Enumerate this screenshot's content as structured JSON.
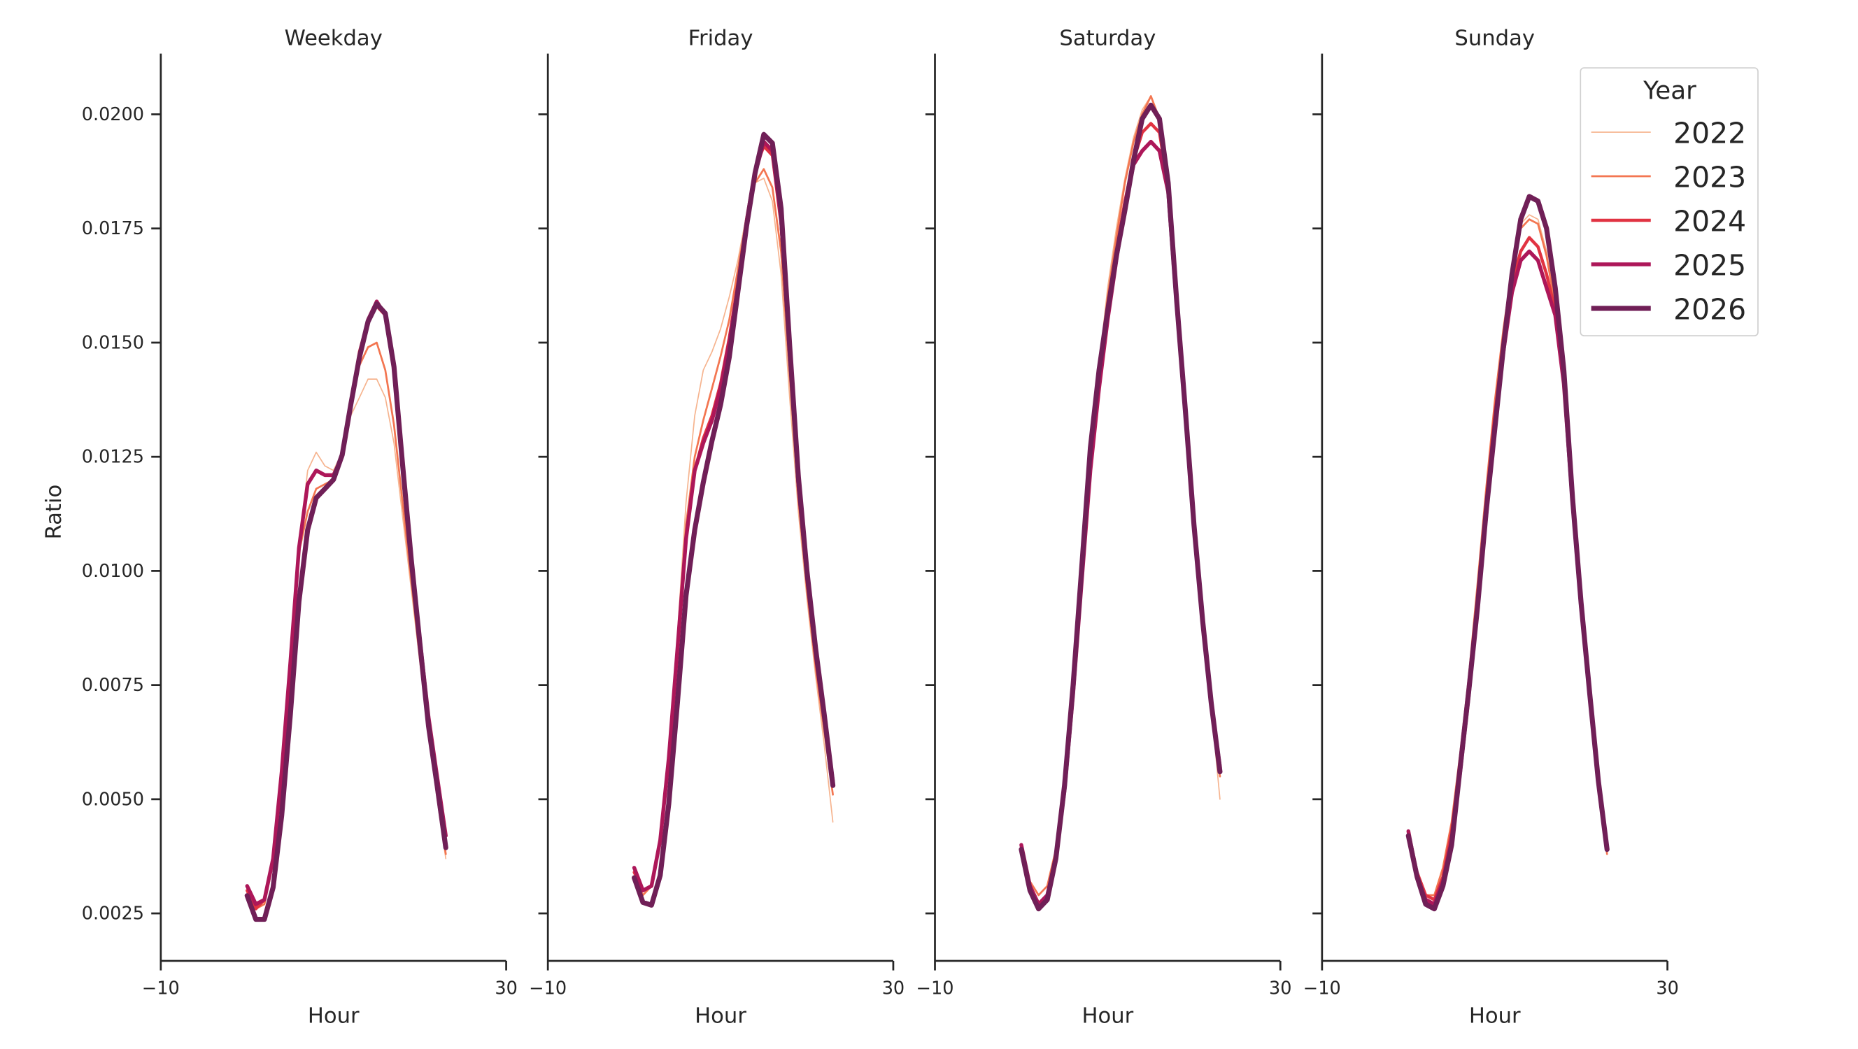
{
  "chart_data": {
    "type": "line",
    "ylabel": "Ratio",
    "xlabel": "Hour",
    "xlim": [
      -10,
      30
    ],
    "ylim": [
      0.00146,
      0.02133
    ],
    "x_ticks": [
      -10,
      30
    ],
    "x_tick_labels": [
      "−10",
      "30"
    ],
    "y_ticks": [
      0.0025,
      0.005,
      0.0075,
      0.01,
      0.0125,
      0.015,
      0.0175,
      0.02
    ],
    "y_tick_labels": [
      "0.0025",
      "0.0050",
      "0.0075",
      "0.0100",
      "0.0125",
      "0.0150",
      "0.0175",
      "0.0200"
    ],
    "grid": false,
    "legend": {
      "title": "Year",
      "placement": "top-right"
    },
    "x": [
      0,
      1,
      2,
      3,
      4,
      5,
      6,
      7,
      8,
      9,
      10,
      11,
      12,
      13,
      14,
      15,
      16,
      17,
      18,
      19,
      20,
      21,
      22,
      23
    ],
    "series_styles": [
      {
        "name": "2022",
        "color": "#f6b48f"
      },
      {
        "name": "2023",
        "color": "#f37651"
      },
      {
        "name": "2024",
        "color": "#e13342"
      },
      {
        "name": "2025",
        "color": "#ad1759"
      },
      {
        "name": "2026",
        "color": "#701f57"
      }
    ],
    "panels": [
      {
        "title": "Weekday",
        "series": [
          {
            "name": "2022",
            "values": [
              0.0029,
              0.0027,
              0.0028,
              0.0036,
              0.0055,
              0.0079,
              0.0105,
              0.0122,
              0.0126,
              0.0123,
              0.0122,
              0.0126,
              0.0134,
              0.0138,
              0.0142,
              0.0142,
              0.0138,
              0.0128,
              0.0112,
              0.0096,
              0.008,
              0.0064,
              0.005,
              0.0037
            ]
          },
          {
            "name": "2023",
            "values": [
              0.0029,
              0.0026,
              0.0027,
              0.0036,
              0.0055,
              0.0079,
              0.0104,
              0.0113,
              0.0118,
              0.0119,
              0.012,
              0.0125,
              0.0136,
              0.0145,
              0.0149,
              0.015,
              0.0144,
              0.0132,
              0.0115,
              0.0098,
              0.0081,
              0.0065,
              0.0051,
              0.0038
            ]
          },
          {
            "name": "2024",
            "values": [
              0.003,
              0.0026,
              0.0028,
              0.0037,
              0.0056,
              0.008,
              0.0105,
              0.0119,
              0.0122,
              0.0121,
              0.0121,
              0.0125,
              0.0137,
              0.0148,
              0.0155,
              0.0158,
              0.0156,
              0.0145,
              0.0124,
              0.0103,
              0.0085,
              0.0068,
              0.0055,
              0.0042
            ]
          },
          {
            "name": "2025",
            "values": [
              0.0031,
              0.0027,
              0.0028,
              0.0037,
              0.0056,
              0.008,
              0.0105,
              0.0119,
              0.0122,
              0.0121,
              0.0121,
              0.0125,
              0.0136,
              0.0147,
              0.0155,
              0.0159,
              0.0156,
              0.0145,
              0.0124,
              0.0103,
              0.0085,
              0.0068,
              0.0055,
              0.0042
            ]
          },
          {
            "name": "2026",
            "values": [
              0.00289,
              0.00237,
              0.00237,
              0.00307,
              0.00464,
              0.00686,
              0.00933,
              0.0109,
              0.0116,
              0.0118,
              0.012,
              0.01254,
              0.01364,
              0.01468,
              0.01546,
              0.01585,
              0.01564,
              0.01447,
              0.01233,
              0.01025,
              0.00842,
              0.0066,
              0.0053,
              0.00394
            ]
          }
        ]
      },
      {
        "title": "Friday",
        "series": [
          {
            "name": "2022",
            "values": [
              0.0033,
              0.0029,
              0.0031,
              0.004,
              0.006,
              0.0086,
              0.0115,
              0.0134,
              0.0144,
              0.0148,
              0.0153,
              0.016,
              0.0168,
              0.0178,
              0.0185,
              0.0186,
              0.0181,
              0.0165,
              0.0138,
              0.0113,
              0.0094,
              0.0077,
              0.0062,
              0.0045
            ]
          },
          {
            "name": "2023",
            "values": [
              0.0033,
              0.0029,
              0.0031,
              0.004,
              0.0059,
              0.0084,
              0.011,
              0.0125,
              0.0133,
              0.014,
              0.0147,
              0.0155,
              0.0166,
              0.0177,
              0.0185,
              0.0188,
              0.0184,
              0.017,
              0.0143,
              0.0116,
              0.0096,
              0.0079,
              0.0065,
              0.0051
            ]
          },
          {
            "name": "2024",
            "values": [
              0.0034,
              0.003,
              0.0031,
              0.0041,
              0.0059,
              0.0083,
              0.0107,
              0.0122,
              0.0129,
              0.0134,
              0.0141,
              0.0151,
              0.0163,
              0.0177,
              0.0188,
              0.0193,
              0.0191,
              0.0176,
              0.0147,
              0.0118,
              0.0098,
              0.0081,
              0.0067,
              0.0053
            ]
          },
          {
            "name": "2025",
            "values": [
              0.0035,
              0.003,
              0.0031,
              0.0041,
              0.0059,
              0.0083,
              0.0107,
              0.0122,
              0.0128,
              0.0133,
              0.014,
              0.015,
              0.0162,
              0.0176,
              0.0187,
              0.0194,
              0.0192,
              0.0177,
              0.0148,
              0.0119,
              0.0099,
              0.0082,
              0.0068,
              0.0054
            ]
          },
          {
            "name": "2026",
            "values": [
              0.00328,
              0.00274,
              0.00268,
              0.00333,
              0.0049,
              0.00712,
              0.00946,
              0.0109,
              0.01194,
              0.01285,
              0.01364,
              0.01468,
              0.01611,
              0.01755,
              0.01872,
              0.01956,
              0.01937,
              0.01794,
              0.01494,
              0.01207,
              0.01,
              0.0083,
              0.00686,
              0.0053
            ]
          }
        ]
      },
      {
        "title": "Saturday",
        "series": [
          {
            "name": "2022",
            "values": [
              0.004,
              0.0032,
              0.0029,
              0.0031,
              0.0039,
              0.0054,
              0.0075,
              0.01,
              0.0126,
              0.0145,
              0.0162,
              0.0175,
              0.0186,
              0.0195,
              0.0201,
              0.0204,
              0.0199,
              0.0184,
              0.0158,
              0.0134,
              0.0109,
              0.0088,
              0.007,
              0.005
            ]
          },
          {
            "name": "2023",
            "values": [
              0.004,
              0.0032,
              0.0029,
              0.0031,
              0.0039,
              0.0054,
              0.0075,
              0.01,
              0.0125,
              0.0144,
              0.016,
              0.0173,
              0.0185,
              0.0194,
              0.02,
              0.0204,
              0.0199,
              0.0184,
              0.0158,
              0.0134,
              0.0109,
              0.0088,
              0.007,
              0.0055
            ]
          },
          {
            "name": "2024",
            "values": [
              0.004,
              0.0031,
              0.0027,
              0.0029,
              0.0038,
              0.0053,
              0.0074,
              0.0099,
              0.0124,
              0.0142,
              0.0157,
              0.017,
              0.0181,
              0.019,
              0.0196,
              0.0198,
              0.0196,
              0.0184,
              0.0158,
              0.0134,
              0.0109,
              0.0089,
              0.0071,
              0.0056
            ]
          },
          {
            "name": "2025",
            "values": [
              0.004,
              0.0031,
              0.0027,
              0.0029,
              0.0037,
              0.0052,
              0.0073,
              0.0098,
              0.0122,
              0.014,
              0.0155,
              0.0168,
              0.018,
              0.0189,
              0.0192,
              0.0194,
              0.0192,
              0.0183,
              0.0158,
              0.0134,
              0.011,
              0.0089,
              0.0071,
              0.0057
            ]
          },
          {
            "name": "2026",
            "values": [
              0.0039,
              0.003,
              0.0026,
              0.0028,
              0.0037,
              0.0053,
              0.0075,
              0.0101,
              0.0127,
              0.0144,
              0.0157,
              0.0169,
              0.0179,
              0.019,
              0.0199,
              0.0202,
              0.0199,
              0.0185,
              0.0159,
              0.0135,
              0.011,
              0.0089,
              0.0071,
              0.0056
            ]
          }
        ]
      },
      {
        "title": "Sunday",
        "series": [
          {
            "name": "2022",
            "values": [
              0.0043,
              0.0034,
              0.0029,
              0.0029,
              0.0035,
              0.0045,
              0.006,
              0.0077,
              0.0097,
              0.0118,
              0.0137,
              0.0153,
              0.0167,
              0.0176,
              0.0178,
              0.0177,
              0.017,
              0.0158,
              0.0141,
              0.0115,
              0.0092,
              0.0073,
              0.0054,
              0.0038
            ]
          },
          {
            "name": "2023",
            "values": [
              0.0043,
              0.0034,
              0.0029,
              0.0029,
              0.0035,
              0.0045,
              0.006,
              0.0077,
              0.0097,
              0.0118,
              0.0137,
              0.0153,
              0.0166,
              0.0175,
              0.0177,
              0.0176,
              0.0169,
              0.0158,
              0.0141,
              0.0115,
              0.0092,
              0.0073,
              0.0054,
              0.0038
            ]
          },
          {
            "name": "2024",
            "values": [
              0.0043,
              0.0034,
              0.0029,
              0.0028,
              0.0033,
              0.0043,
              0.0058,
              0.0075,
              0.0094,
              0.0115,
              0.0134,
              0.015,
              0.0163,
              0.017,
              0.0173,
              0.0171,
              0.0165,
              0.0157,
              0.0141,
              0.0115,
              0.0092,
              0.0073,
              0.0054,
              0.0039
            ]
          },
          {
            "name": "2025",
            "values": [
              0.0043,
              0.0033,
              0.0028,
              0.0027,
              0.0032,
              0.0041,
              0.0056,
              0.0073,
              0.0092,
              0.0112,
              0.0132,
              0.0148,
              0.0161,
              0.0168,
              0.017,
              0.0168,
              0.0162,
              0.0156,
              0.0141,
              0.0115,
              0.0092,
              0.0073,
              0.0054,
              0.0039
            ]
          },
          {
            "name": "2026",
            "values": [
              0.0042,
              0.0033,
              0.0027,
              0.0026,
              0.0031,
              0.004,
              0.0057,
              0.0074,
              0.0092,
              0.0113,
              0.0131,
              0.0149,
              0.0165,
              0.0177,
              0.0182,
              0.0181,
              0.0175,
              0.0162,
              0.0144,
              0.0116,
              0.0093,
              0.0073,
              0.0054,
              0.0039
            ]
          }
        ]
      }
    ]
  }
}
